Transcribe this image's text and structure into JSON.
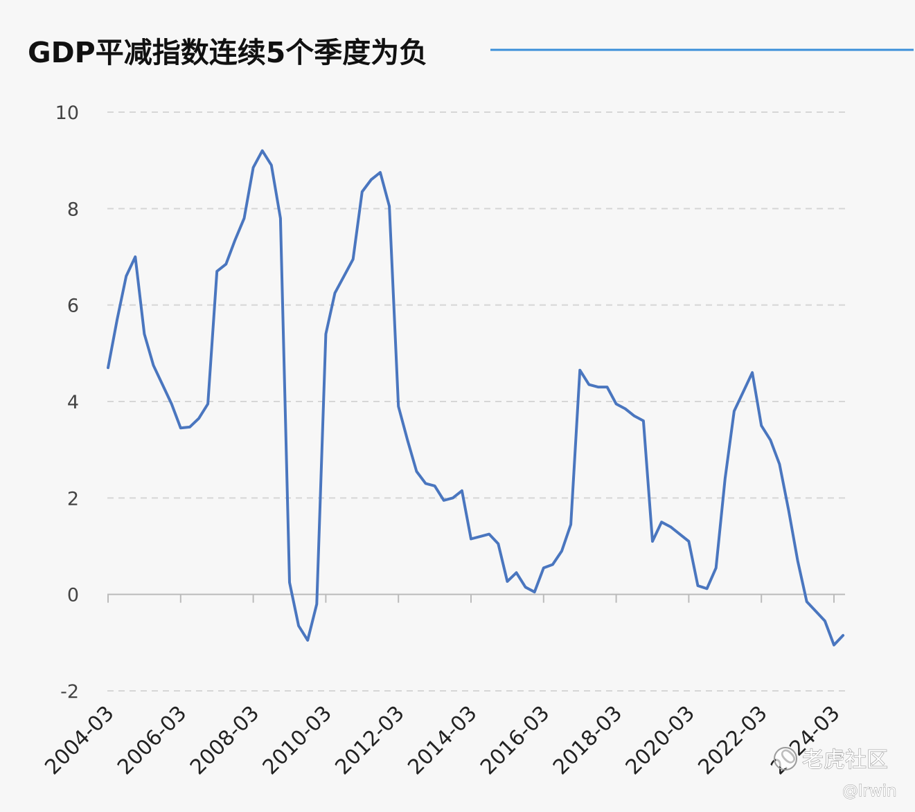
{
  "chart_data": {
    "type": "line",
    "title": "GDP平减指数连续5个季度为负",
    "xlabel": "",
    "ylabel": "",
    "ylim": [
      -2,
      10
    ],
    "yticks": [
      -2,
      0,
      2,
      4,
      6,
      8,
      10
    ],
    "grid": true,
    "legend": "none",
    "x_tick_labels": [
      "2004-03",
      "2006-03",
      "2008-03",
      "2010-03",
      "2012-03",
      "2014-03",
      "2016-03",
      "2018-03",
      "2020-03",
      "2022-03",
      "2024-03"
    ],
    "x": [
      "2004-03",
      "2004-06",
      "2004-09",
      "2004-12",
      "2005-03",
      "2005-06",
      "2005-09",
      "2005-12",
      "2006-03",
      "2006-06",
      "2006-09",
      "2006-12",
      "2007-03",
      "2007-06",
      "2007-09",
      "2007-12",
      "2008-03",
      "2008-06",
      "2008-09",
      "2008-12",
      "2009-03",
      "2009-06",
      "2009-09",
      "2009-12",
      "2010-03",
      "2010-06",
      "2010-09",
      "2010-12",
      "2011-03",
      "2011-06",
      "2011-09",
      "2011-12",
      "2012-03",
      "2012-06",
      "2012-09",
      "2012-12",
      "2013-03",
      "2013-06",
      "2013-09",
      "2013-12",
      "2014-03",
      "2014-06",
      "2014-09",
      "2014-12",
      "2015-03",
      "2015-06",
      "2015-09",
      "2015-12",
      "2016-03",
      "2016-06",
      "2016-09",
      "2016-12",
      "2017-03",
      "2017-06",
      "2017-09",
      "2017-12",
      "2018-03",
      "2018-06",
      "2018-09",
      "2018-12",
      "2019-03",
      "2019-06",
      "2019-09",
      "2019-12",
      "2020-03",
      "2020-06",
      "2020-09",
      "2020-12",
      "2021-03",
      "2021-06",
      "2021-09",
      "2021-12",
      "2022-03",
      "2022-06",
      "2022-09",
      "2022-12",
      "2023-03",
      "2023-06",
      "2023-09",
      "2023-12",
      "2024-03",
      "2024-06"
    ],
    "series": [
      {
        "values": [
          4.7,
          5.7,
          6.6,
          7.0,
          5.4,
          4.75,
          4.35,
          3.95,
          3.45,
          3.47,
          3.65,
          3.95,
          6.7,
          6.85,
          7.35,
          7.8,
          8.85,
          9.2,
          8.9,
          7.8,
          0.25,
          -0.65,
          -0.95,
          -0.2,
          5.4,
          6.25,
          6.6,
          6.95,
          8.35,
          8.6,
          8.75,
          8.05,
          3.9,
          3.2,
          2.55,
          2.3,
          2.25,
          1.95,
          2.0,
          2.15,
          1.15,
          1.2,
          1.25,
          1.05,
          0.27,
          0.45,
          0.15,
          0.05,
          0.55,
          0.62,
          0.9,
          1.45,
          4.65,
          4.35,
          4.3,
          4.3,
          3.95,
          3.85,
          3.7,
          3.6,
          1.1,
          1.5,
          1.4,
          1.25,
          1.1,
          0.18,
          0.12,
          0.55,
          2.4,
          3.8,
          4.2,
          4.6,
          3.5,
          3.2,
          2.7,
          1.75,
          0.7,
          -0.15,
          -0.35,
          -0.55,
          -1.05,
          -0.85
        ]
      }
    ]
  },
  "colors": {
    "line": "#4a76bf",
    "title_rule": "#3b8fd9",
    "grid": "#d6d6d6",
    "baseline": "#bbbbbb",
    "background": "#f7f7f7"
  },
  "watermark": {
    "text": "老虎社区",
    "handle": "@lrwin"
  }
}
